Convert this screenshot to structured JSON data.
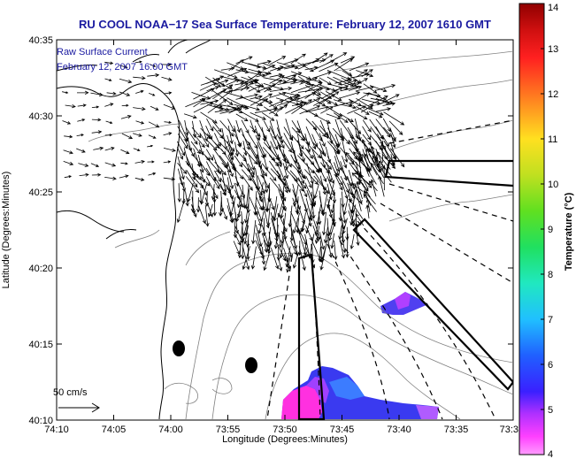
{
  "chart_data": {
    "type": "map-vector-field",
    "title": "RU COOL  NOAA−17  Sea Surface Temperature:  February 12, 2007 1610 GMT",
    "xlabel": "Longitude (Degrees:Minutes)",
    "ylabel": "Latitude (Degrees:Minutes)",
    "x_ticks": [
      "74:10",
      "74:05",
      "74:00",
      "73:55",
      "73:50",
      "73:45",
      "73:40",
      "73:35",
      "73:3"
    ],
    "y_ticks": [
      "40:10",
      "40:15",
      "40:20",
      "40:25",
      "40:30",
      "40:35"
    ],
    "legend": {
      "line1": "Raw Surface Current",
      "line2": "February 12, 2007 16:00 GMT",
      "position": "top-left"
    },
    "scale_vector_label": "50 cm/s",
    "colorbar": {
      "label": "Temperature (°C)",
      "ticks": [
        "4",
        "5",
        "6",
        "7",
        "8",
        "9",
        "10",
        "11",
        "12",
        "13",
        "14"
      ],
      "range": [
        4,
        14
      ]
    },
    "colors": {
      "title": "#1a1aa0",
      "arrows": "#000000",
      "coastline": "#000000",
      "bathymetry": "#808080"
    }
  }
}
